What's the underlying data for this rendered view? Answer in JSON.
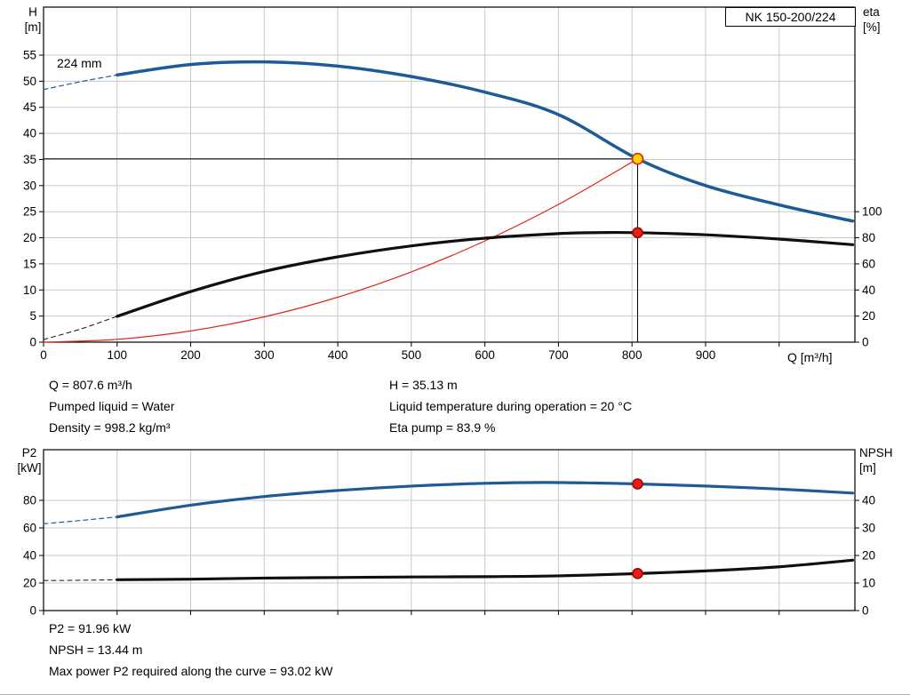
{
  "colors": {
    "grid": "#c9c9c9",
    "frame": "#000000",
    "blue": "#1e5b96",
    "black": "#101010",
    "red": "#e02518",
    "marker_red": "#ee1c12",
    "marker_red_stroke": "#8c1008",
    "duty_yellow": "#ffd400"
  },
  "chart_data": [
    {
      "type": "line",
      "name": "hq",
      "title": "NK 150-200/224",
      "x_axis": {
        "label": "Q [m³/h]",
        "min": 0,
        "max": 1103,
        "ticks": [
          0,
          100,
          200,
          300,
          400,
          500,
          600,
          700,
          800,
          900
        ],
        "grid_ticks": [
          100,
          200,
          300,
          400,
          500,
          600,
          700,
          800,
          900,
          1000
        ]
      },
      "y_left": {
        "label_lines": [
          "H",
          "[m]"
        ],
        "min": 0,
        "max": 64.2,
        "ticks": [
          0,
          5,
          10,
          15,
          20,
          25,
          30,
          35,
          40,
          45,
          50,
          55
        ]
      },
      "y_right": {
        "label_lines": [
          "eta",
          "[%]"
        ],
        "ticks": [
          0,
          20,
          40,
          60,
          80,
          100
        ],
        "per_left_unit": 4
      },
      "annotations": {
        "impeller": "224 mm"
      },
      "duty_point": {
        "q": 807.6,
        "h": 35.13,
        "eta": 83.9
      },
      "ref_lines": [
        {
          "from": [
            0,
            35.13
          ],
          "to": [
            807.6,
            35.13
          ]
        },
        {
          "from": [
            807.6,
            0
          ],
          "to": [
            807.6,
            35.13
          ]
        }
      ],
      "series": [
        {
          "name": "h-curve-extrapolated",
          "axis": "left",
          "color": "#1e5b96",
          "width": 1.2,
          "dash": true,
          "points": [
            [
              0,
              48.4
            ],
            [
              50,
              49.9
            ],
            [
              100,
              51.2
            ]
          ]
        },
        {
          "name": "eta-curve-extrapolated",
          "axis": "right",
          "color": "#101010",
          "width": 1,
          "dash": true,
          "points": [
            [
              0,
              2
            ],
            [
              50,
              10
            ],
            [
              100,
              19.8
            ]
          ]
        },
        {
          "name": "system-curve",
          "axis": "left",
          "color": "#e02518",
          "width": 1.2,
          "dash": false,
          "points": [
            [
              0,
              0
            ],
            [
              100,
              0.54
            ],
            [
              200,
              2.15
            ],
            [
              300,
              4.85
            ],
            [
              400,
              8.62
            ],
            [
              500,
              13.47
            ],
            [
              600,
              19.39
            ],
            [
              700,
              26.39
            ],
            [
              807.6,
              35.13
            ]
          ]
        },
        {
          "name": "h-curve-224mm",
          "axis": "left",
          "color": "#1e5b96",
          "width": 3.5,
          "dash": false,
          "points": [
            [
              100,
              51.2
            ],
            [
              200,
              53.2
            ],
            [
              300,
              53.7
            ],
            [
              400,
              52.9
            ],
            [
              500,
              50.9
            ],
            [
              600,
              47.9
            ],
            [
              700,
              43.6
            ],
            [
              807.6,
              35.13
            ],
            [
              900,
              30.0
            ],
            [
              1000,
              26.3
            ],
            [
              1100,
              23.2
            ]
          ]
        },
        {
          "name": "eta-curve",
          "axis": "right",
          "color": "#101010",
          "width": 3.2,
          "dash": false,
          "points": [
            [
              100,
              19.8
            ],
            [
              200,
              38.8
            ],
            [
              300,
              54.2
            ],
            [
              400,
              65.4
            ],
            [
              500,
              73.8
            ],
            [
              600,
              79.7
            ],
            [
              700,
              83.2
            ],
            [
              760,
              84.0
            ],
            [
              807.6,
              83.9
            ],
            [
              900,
              82.3
            ],
            [
              1000,
              79.0
            ],
            [
              1100,
              74.7
            ]
          ]
        }
      ],
      "markers": [
        {
          "name": "duty-point-marker",
          "x": 807.6,
          "v": 35.13,
          "axis": "left",
          "r": 6,
          "fill": "#ffd400",
          "stroke": "#e02518"
        },
        {
          "name": "eta-duty-marker",
          "x": 807.6,
          "v": 83.9,
          "axis": "right",
          "r": 5.5,
          "fill": "#ee1c12",
          "stroke": "#8c1008"
        }
      ]
    },
    {
      "type": "line",
      "name": "power-npsh",
      "title": "",
      "x_axis": {
        "label": "",
        "min": 0,
        "max": 1103,
        "ticks": [
          0,
          100,
          200,
          300,
          400,
          500,
          600,
          700,
          800,
          900
        ],
        "grid_ticks": [
          100,
          200,
          300,
          400,
          500,
          600,
          700,
          800,
          900,
          1000
        ]
      },
      "y_left": {
        "label_lines": [
          "P2",
          "[kW]"
        ],
        "min": 0,
        "max": 116.8,
        "ticks": [
          0,
          20,
          40,
          60,
          80
        ]
      },
      "y_right": {
        "label_lines": [
          "NPSH",
          "[m]"
        ],
        "ticks": [
          0,
          10,
          20,
          30,
          40
        ],
        "per_left_unit": 0.5
      },
      "annotations": {},
      "ref_lines": [],
      "series": [
        {
          "name": "p2-curve-extrapolated",
          "axis": "left",
          "color": "#1e5b96",
          "width": 1.2,
          "dash": true,
          "points": [
            [
              0,
              63
            ],
            [
              50,
              65.4
            ],
            [
              100,
              68
            ]
          ]
        },
        {
          "name": "npsh-curve-extrapolated",
          "axis": "right",
          "color": "#101010",
          "width": 1,
          "dash": true,
          "points": [
            [
              0,
              10.9
            ],
            [
              50,
              11.0
            ],
            [
              100,
              11.2
            ]
          ]
        },
        {
          "name": "p2-curve",
          "axis": "left",
          "color": "#1e5b96",
          "width": 3.2,
          "dash": false,
          "points": [
            [
              100,
              68
            ],
            [
              200,
              76.5
            ],
            [
              300,
              82.8
            ],
            [
              400,
              87.2
            ],
            [
              500,
              90.4
            ],
            [
              600,
              92.4
            ],
            [
              680,
              93.02
            ],
            [
              750,
              92.6
            ],
            [
              807.6,
              91.96
            ],
            [
              900,
              90.4
            ],
            [
              1000,
              88.2
            ],
            [
              1100,
              85.3
            ]
          ]
        },
        {
          "name": "npsh-curve",
          "axis": "right",
          "color": "#101010",
          "width": 3.2,
          "dash": false,
          "points": [
            [
              100,
              11.2
            ],
            [
              200,
              11.4
            ],
            [
              300,
              11.8
            ],
            [
              400,
              12.0
            ],
            [
              500,
              12.2
            ],
            [
              600,
              12.3
            ],
            [
              700,
              12.6
            ],
            [
              807.6,
              13.44
            ],
            [
              900,
              14.4
            ],
            [
              1000,
              15.9
            ],
            [
              1100,
              18.3
            ]
          ]
        }
      ],
      "markers": [
        {
          "name": "p2-duty-marker",
          "x": 807.6,
          "v": 91.96,
          "axis": "left",
          "r": 5.5,
          "fill": "#ee1c12",
          "stroke": "#8c1008"
        },
        {
          "name": "npsh-duty-marker",
          "x": 807.6,
          "v": 13.44,
          "axis": "right",
          "r": 5.5,
          "fill": "#ee1c12",
          "stroke": "#8c1008"
        }
      ]
    }
  ],
  "info_top": {
    "left": [
      "Q = 807.6 m³/h",
      "Pumped liquid = Water",
      "Density = 998.2 kg/m³"
    ],
    "right": [
      "H = 35.13 m",
      "Liquid temperature during operation = 20 °C",
      "Eta pump = 83.9 %"
    ]
  },
  "info_bottom": [
    "P2 = 91.96 kW",
    "NPSH = 13.44 m",
    "Max power P2 required along the curve = 93.02 kW"
  ]
}
